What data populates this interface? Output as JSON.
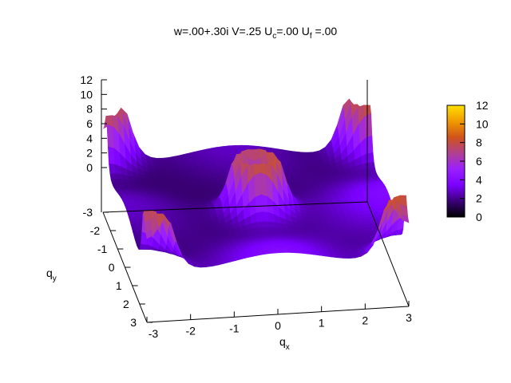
{
  "chart_data": {
    "type": "surface3d",
    "title": {
      "parts": [
        {
          "text": "w=.00+.30i V=.25 U",
          "sub": false
        },
        {
          "text": "c",
          "sub": true
        },
        {
          "text": "=.00 U",
          "sub": false
        },
        {
          "text": "f",
          "sub": true
        },
        {
          "text": " =.00",
          "sub": false
        }
      ]
    },
    "xlabel": {
      "main": "q",
      "sub": "x"
    },
    "ylabel": {
      "main": "q",
      "sub": "y"
    },
    "x_ticks": [
      "-3",
      "-2",
      "-1",
      "0",
      "1",
      "2",
      "3"
    ],
    "y_ticks": [
      "-3",
      "-2",
      "-1",
      "0",
      "1",
      "2",
      "3"
    ],
    "z_ticks": [
      "0",
      "2",
      "4",
      "6",
      "8",
      "10",
      "12"
    ],
    "colorbar_ticks": [
      "0",
      "2",
      "4",
      "6",
      "8",
      "10",
      "12"
    ],
    "xlim": [
      -3.14,
      3.14
    ],
    "ylim": [
      -3.14,
      3.14
    ],
    "zlim": [
      0,
      12
    ],
    "colormap": [
      "#000000",
      "#3b0078",
      "#7b00ff",
      "#9a20ff",
      "#b04090",
      "#d0531a",
      "#f09a00",
      "#ffe000"
    ],
    "grid": false
  }
}
